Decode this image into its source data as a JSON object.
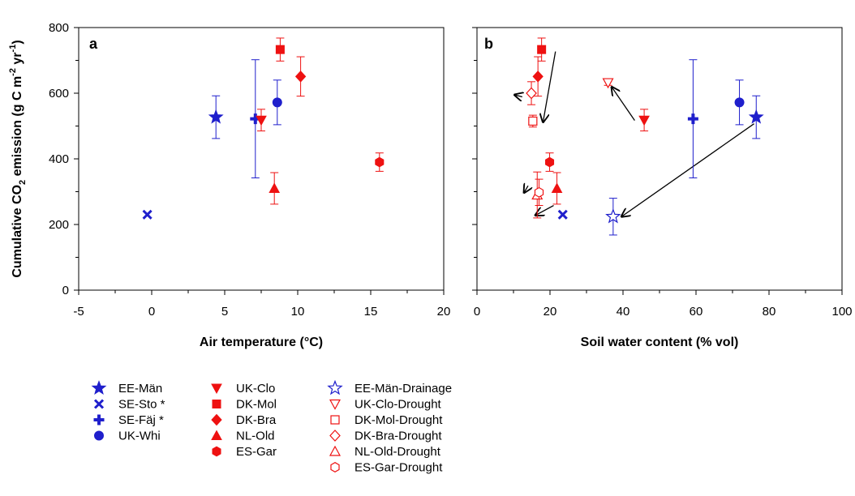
{
  "figure": {
    "ylabel_html": [
      "Cumulative CO",
      "2",
      " emission (g C m",
      "-2",
      " yr",
      "-1",
      ")"
    ]
  },
  "chart_data": [
    {
      "type": "scatter",
      "panel": "a",
      "xlabel": "Air temperature (°C)",
      "ylabel": "Cumulative CO2 emission (g C m-2 yr-1)",
      "xlim": [
        -5,
        20
      ],
      "ylim": [
        0,
        800
      ],
      "xticks": [
        "-5",
        "0",
        "5",
        "10",
        "15",
        "20"
      ],
      "yticks": [
        "0",
        "200",
        "400",
        "600",
        "800"
      ],
      "grid": false,
      "series": [
        {
          "name": "EE-Män",
          "marker": "star",
          "color": "#1f1fcc",
          "filled": true,
          "x": 4.4,
          "y": 527,
          "err": 65
        },
        {
          "name": "SE-Sto *",
          "marker": "x",
          "color": "#1f1fcc",
          "filled": true,
          "x": -0.3,
          "y": 230,
          "err": 0
        },
        {
          "name": "SE-Fäj *",
          "marker": "plus",
          "color": "#1f1fcc",
          "filled": true,
          "x": 7.1,
          "y": 522,
          "err": 180
        },
        {
          "name": "UK-Whi",
          "marker": "circle",
          "color": "#1f1fcc",
          "filled": true,
          "x": 8.6,
          "y": 572,
          "err": 68
        },
        {
          "name": "UK-Clo",
          "marker": "tri-down",
          "color": "#ee1111",
          "filled": true,
          "x": 7.5,
          "y": 518,
          "err": 33
        },
        {
          "name": "DK-Mol",
          "marker": "square",
          "color": "#ee1111",
          "filled": true,
          "x": 8.8,
          "y": 733,
          "err": 35
        },
        {
          "name": "DK-Bra",
          "marker": "diamond",
          "color": "#ee1111",
          "filled": true,
          "x": 10.2,
          "y": 651,
          "err": 60
        },
        {
          "name": "NL-Old",
          "marker": "tri-up",
          "color": "#ee1111",
          "filled": true,
          "x": 8.4,
          "y": 310,
          "err": 48
        },
        {
          "name": "ES-Gar",
          "marker": "hexagon",
          "color": "#ee1111",
          "filled": true,
          "x": 15.6,
          "y": 390,
          "err": 28
        }
      ]
    },
    {
      "type": "scatter",
      "panel": "b",
      "xlabel": "Soil water content (% vol)",
      "ylabel": "",
      "xlim": [
        0,
        100
      ],
      "ylim": [
        0,
        800
      ],
      "xticks": [
        "0",
        "20",
        "40",
        "60",
        "80",
        "100"
      ],
      "grid": false,
      "series": [
        {
          "name": "EE-Män",
          "marker": "star",
          "color": "#1f1fcc",
          "filled": true,
          "x": 76.5,
          "y": 527,
          "err": 65
        },
        {
          "name": "SE-Sto *",
          "marker": "x",
          "color": "#1f1fcc",
          "filled": true,
          "x": 23.5,
          "y": 230,
          "err": 0
        },
        {
          "name": "SE-Fäj *",
          "marker": "plus",
          "color": "#1f1fcc",
          "filled": true,
          "x": 59.2,
          "y": 522,
          "err": 180
        },
        {
          "name": "UK-Whi",
          "marker": "circle",
          "color": "#1f1fcc",
          "filled": true,
          "x": 71.9,
          "y": 572,
          "err": 68
        },
        {
          "name": "UK-Clo",
          "marker": "tri-down",
          "color": "#ee1111",
          "filled": true,
          "x": 45.8,
          "y": 518,
          "err": 33
        },
        {
          "name": "DK-Mol",
          "marker": "square",
          "color": "#ee1111",
          "filled": true,
          "x": 17.7,
          "y": 733,
          "err": 35
        },
        {
          "name": "DK-Bra",
          "marker": "diamond",
          "color": "#ee1111",
          "filled": true,
          "x": 16.7,
          "y": 651,
          "err": 60
        },
        {
          "name": "NL-Old",
          "marker": "tri-up",
          "color": "#ee1111",
          "filled": true,
          "x": 21.9,
          "y": 310,
          "err": 48
        },
        {
          "name": "ES-Gar",
          "marker": "hexagon",
          "color": "#ee1111",
          "filled": true,
          "x": 19.9,
          "y": 390,
          "err": 28
        },
        {
          "name": "EE-Män-Drainage",
          "marker": "star",
          "color": "#1f1fcc",
          "filled": false,
          "x": 37.3,
          "y": 224,
          "err": 56
        },
        {
          "name": "UK-Clo-Drought",
          "marker": "tri-down",
          "color": "#ee1111",
          "filled": false,
          "x": 35.9,
          "y": 632,
          "err": 8
        },
        {
          "name": "DK-Mol-Drought",
          "marker": "square",
          "color": "#ee1111",
          "filled": false,
          "x": 15.3,
          "y": 515,
          "err": 18
        },
        {
          "name": "DK-Bra-Drought",
          "marker": "diamond",
          "color": "#ee1111",
          "filled": false,
          "x": 14.9,
          "y": 600,
          "err": 35
        },
        {
          "name": "NL-Old-Drought",
          "marker": "tri-up",
          "color": "#ee1111",
          "filled": false,
          "x": 16.5,
          "y": 290,
          "err": 70
        },
        {
          "name": "ES-Gar-Drought",
          "marker": "hexagon",
          "color": "#ee1111",
          "filled": false,
          "x": 17.0,
          "y": 298,
          "err": 40
        }
      ],
      "annotations": [
        {
          "type": "arrow",
          "from": [
            21.5,
            727
          ],
          "to": [
            18.1,
            512
          ]
        },
        {
          "type": "arrow",
          "from": [
            12.4,
            589
          ],
          "to": [
            10.3,
            595
          ]
        },
        {
          "type": "arrow",
          "from": [
            43.2,
            517
          ],
          "to": [
            36.9,
            619
          ]
        },
        {
          "type": "arrow",
          "from": [
            75.9,
            507
          ],
          "to": [
            39.6,
            224
          ]
        },
        {
          "type": "arrow",
          "from": [
            14.0,
            318
          ],
          "to": [
            12.9,
            297
          ]
        },
        {
          "type": "arrow",
          "from": [
            21.0,
            258
          ],
          "to": [
            16.0,
            228
          ]
        }
      ]
    }
  ],
  "legend": {
    "placement": "bottom",
    "columns": [
      [
        "EE-Män",
        "SE-Sto *",
        "SE-Fäj *",
        "UK-Whi"
      ],
      [
        "UK-Clo",
        "DK-Mol",
        "DK-Bra",
        "NL-Old",
        "ES-Gar"
      ],
      [
        "EE-Män-Drainage",
        "UK-Clo-Drought",
        "DK-Mol-Drought",
        "DK-Bra-Drought",
        "NL-Old-Drought",
        "ES-Gar-Drought"
      ]
    ]
  }
}
